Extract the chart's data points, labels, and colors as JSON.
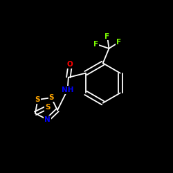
{
  "background_color": "#000000",
  "bond_color": "#ffffff",
  "atom_colors": {
    "O": "#ff0000",
    "N": "#0000ff",
    "S": "#ffa500",
    "F": "#7cfc00",
    "C": "#ffffff",
    "H": "#ffffff"
  },
  "figsize": [
    2.5,
    2.5
  ],
  "dpi": 100,
  "bond_lw": 1.3,
  "font_size": 7.5
}
